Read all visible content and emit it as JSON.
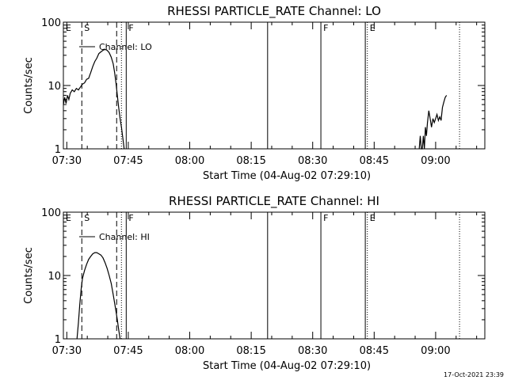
{
  "footer": {
    "timestamp": "17-Oct-2021 23:39"
  },
  "chart_data": [
    {
      "type": "line",
      "title": "RHESSI PARTICLE_RATE Channel: LO",
      "xlabel": "Start Time (04-Aug-02 07:29:10)",
      "ylabel": "Counts/sec",
      "yscale": "log",
      "ylim": [
        1,
        100
      ],
      "yticks": [
        {
          "value": 1,
          "label": "1"
        },
        {
          "value": 10,
          "label": "10"
        },
        {
          "value": 100,
          "label": "100"
        }
      ],
      "xlim": [
        "07:29:10",
        "09:12:00"
      ],
      "xticks": [
        "07:30",
        "07:45",
        "08:00",
        "08:15",
        "08:30",
        "08:45",
        "09:00"
      ],
      "legend": {
        "placement": "top-left",
        "label": "Channel: LO"
      },
      "annotations": [
        {
          "label": "E",
          "time": "07:29:10",
          "style": "none"
        },
        {
          "label": "S",
          "time": "07:33:40",
          "style": "dashed"
        },
        {
          "label": "",
          "time": "07:42:10",
          "style": "dashed"
        },
        {
          "label": "",
          "time": "07:43:20",
          "style": "dotted"
        },
        {
          "label": "F",
          "time": "07:44:30",
          "style": "solid"
        },
        {
          "label": "",
          "time": "08:19:00",
          "style": "solid"
        },
        {
          "label": "F",
          "time": "08:32:00",
          "style": "solid"
        },
        {
          "label": "",
          "time": "08:42:50",
          "style": "solid"
        },
        {
          "label": "E",
          "time": "08:43:20",
          "style": "dotted"
        },
        {
          "label": "",
          "time": "09:05:50",
          "style": "dotted"
        }
      ],
      "series": [
        {
          "name": "Channel: LO",
          "points": [
            [
              "07:29:10",
              5.0
            ],
            [
              "07:29:30",
              6.5
            ],
            [
              "07:29:50",
              5.2
            ],
            [
              "07:30:10",
              7.0
            ],
            [
              "07:30:30",
              6.0
            ],
            [
              "07:30:50",
              7.5
            ],
            [
              "07:31:20",
              8.5
            ],
            [
              "07:31:50",
              8.0
            ],
            [
              "07:32:20",
              9.0
            ],
            [
              "07:32:50",
              8.5
            ],
            [
              "07:33:20",
              9.5
            ],
            [
              "07:33:50",
              10.5
            ],
            [
              "07:34:20",
              11.0
            ],
            [
              "07:34:50",
              12.5
            ],
            [
              "07:35:20",
              13.0
            ],
            [
              "07:35:50",
              16.0
            ],
            [
              "07:36:20",
              20.0
            ],
            [
              "07:36:50",
              24.0
            ],
            [
              "07:37:20",
              27.0
            ],
            [
              "07:37:50",
              32.0
            ],
            [
              "07:38:20",
              34.0
            ],
            [
              "07:38:50",
              36.0
            ],
            [
              "07:39:20",
              37.0
            ],
            [
              "07:39:50",
              36.0
            ],
            [
              "07:40:20",
              33.0
            ],
            [
              "07:40:50",
              28.0
            ],
            [
              "07:41:20",
              22.0
            ],
            [
              "07:41:40",
              16.0
            ],
            [
              "07:42:00",
              11.0
            ],
            [
              "07:42:20",
              7.0
            ],
            [
              "07:42:40",
              4.5
            ],
            [
              "07:43:00",
              3.0
            ],
            [
              "07:43:20",
              2.2
            ],
            [
              "07:43:40",
              1.5
            ],
            [
              "07:44:00",
              1.0
            ]
          ]
        },
        {
          "name": "Channel: LO",
          "points": [
            [
              "08:56:00",
              1.0
            ],
            [
              "08:56:15",
              1.6
            ],
            [
              "08:56:30",
              1.0
            ],
            [
              "08:56:45",
              1.0
            ],
            [
              "08:57:00",
              1.6
            ],
            [
              "08:57:15",
              1.0
            ],
            [
              "08:57:30",
              2.2
            ],
            [
              "08:57:45",
              1.6
            ],
            [
              "08:58:00",
              2.6
            ],
            [
              "08:58:20",
              4.0
            ],
            [
              "08:58:40",
              3.0
            ],
            [
              "08:59:00",
              2.2
            ],
            [
              "08:59:20",
              3.0
            ],
            [
              "08:59:40",
              2.6
            ],
            [
              "09:00:00",
              3.0
            ],
            [
              "09:00:20",
              3.5
            ],
            [
              "09:00:40",
              2.8
            ],
            [
              "09:01:00",
              3.2
            ],
            [
              "09:01:20",
              2.8
            ],
            [
              "09:01:40",
              4.5
            ],
            [
              "09:02:00",
              5.5
            ],
            [
              "09:02:20",
              6.5
            ],
            [
              "09:02:40",
              7.0
            ]
          ]
        }
      ]
    },
    {
      "type": "line",
      "title": "RHESSI PARTICLE_RATE Channel: HI",
      "xlabel": "Start Time (04-Aug-02 07:29:10)",
      "ylabel": "Counts/sec",
      "yscale": "log",
      "ylim": [
        1,
        100
      ],
      "yticks": [
        {
          "value": 1,
          "label": "1"
        },
        {
          "value": 10,
          "label": "10"
        },
        {
          "value": 100,
          "label": "100"
        }
      ],
      "xlim": [
        "07:29:10",
        "09:12:00"
      ],
      "xticks": [
        "07:30",
        "07:45",
        "08:00",
        "08:15",
        "08:30",
        "08:45",
        "09:00"
      ],
      "legend": {
        "placement": "top-left",
        "label": "Channel: HI"
      },
      "annotations": [
        {
          "label": "E",
          "time": "07:29:10",
          "style": "none"
        },
        {
          "label": "S",
          "time": "07:33:40",
          "style": "dashed"
        },
        {
          "label": "",
          "time": "07:42:10",
          "style": "dashed"
        },
        {
          "label": "",
          "time": "07:43:20",
          "style": "dotted"
        },
        {
          "label": "F",
          "time": "07:44:30",
          "style": "solid"
        },
        {
          "label": "",
          "time": "08:19:00",
          "style": "solid"
        },
        {
          "label": "F",
          "time": "08:32:00",
          "style": "solid"
        },
        {
          "label": "",
          "time": "08:42:50",
          "style": "solid"
        },
        {
          "label": "E",
          "time": "08:43:20",
          "style": "dotted"
        },
        {
          "label": "",
          "time": "09:05:50",
          "style": "dotted"
        }
      ],
      "series": [
        {
          "name": "Channel: HI",
          "points": [
            [
              "07:32:30",
              1.0
            ],
            [
              "07:32:50",
              1.8
            ],
            [
              "07:33:10",
              3.5
            ],
            [
              "07:33:30",
              6.0
            ],
            [
              "07:33:50",
              9.0
            ],
            [
              "07:34:20",
              12.0
            ],
            [
              "07:34:50",
              15.0
            ],
            [
              "07:35:20",
              18.0
            ],
            [
              "07:35:50",
              20.0
            ],
            [
              "07:36:20",
              22.0
            ],
            [
              "07:36:50",
              23.0
            ],
            [
              "07:37:20",
              23.0
            ],
            [
              "07:37:50",
              22.0
            ],
            [
              "07:38:20",
              21.0
            ],
            [
              "07:38:50",
              19.0
            ],
            [
              "07:39:20",
              16.0
            ],
            [
              "07:39:50",
              13.0
            ],
            [
              "07:40:20",
              10.0
            ],
            [
              "07:40:50",
              7.5
            ],
            [
              "07:41:20",
              5.0
            ],
            [
              "07:41:50",
              3.2
            ],
            [
              "07:42:20",
              2.0
            ],
            [
              "07:42:40",
              1.4
            ],
            [
              "07:43:00",
              1.0
            ]
          ]
        }
      ]
    }
  ]
}
